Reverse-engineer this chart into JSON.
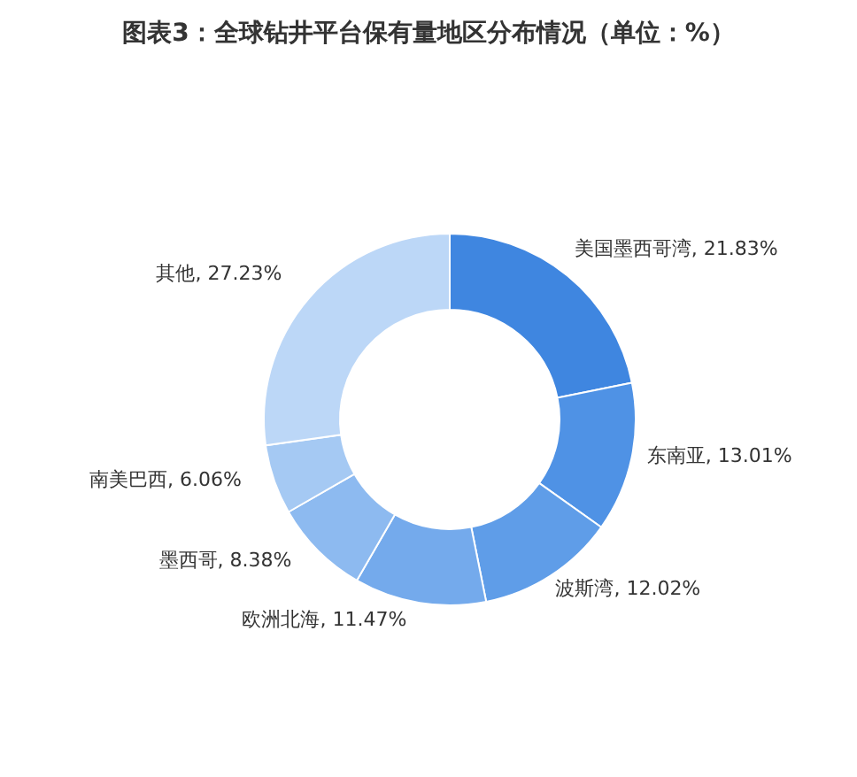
{
  "chart_data": {
    "type": "donut",
    "title": "图表3：全球钻井平台保有量地区分布情况（单位：%）",
    "categories": [
      "美国墨西哥湾",
      "东南亚",
      "波斯湾",
      "欧洲北海",
      "墨西哥",
      "南美巴西",
      "其他"
    ],
    "values": [
      21.83,
      13.01,
      12.02,
      11.47,
      8.38,
      6.06,
      27.23
    ],
    "value_labels": [
      "21.83%",
      "13.01%",
      "12.02%",
      "11.47%",
      "8.38%",
      "6.06%",
      "27.23%"
    ],
    "colors": [
      "#3f86e0",
      "#4f92e5",
      "#5f9de8",
      "#74aaec",
      "#8dbaf0",
      "#a5c9f3",
      "#bcd7f7"
    ],
    "legend": false
  }
}
